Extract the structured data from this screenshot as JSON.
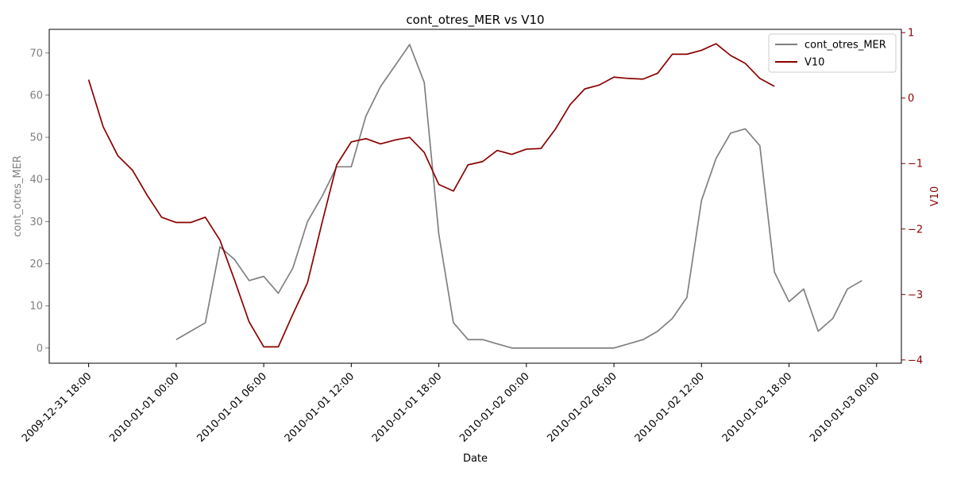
{
  "chart_data": {
    "type": "line",
    "title": "cont_otres_MER vs V10",
    "xlabel": "Date",
    "ylabel_left": "cont_otres_MER",
    "ylabel_right": "V10",
    "x_ticks": [
      "2009-12-31 18:00",
      "2010-01-01 00:00",
      "2010-01-01 06:00",
      "2010-01-01 12:00",
      "2010-01-01 18:00",
      "2010-01-02 00:00",
      "2010-01-02 06:00",
      "2010-01-02 12:00",
      "2010-01-02 18:00",
      "2010-01-03 00:00"
    ],
    "x_tick_hours": [
      0,
      6,
      12,
      18,
      24,
      30,
      36,
      42,
      48,
      54
    ],
    "xlim_hours": [
      -2.7,
      55.7
    ],
    "ylim_left": [
      -3.6,
      75.6
    ],
    "yticks_left": [
      0,
      10,
      20,
      30,
      40,
      50,
      60,
      70
    ],
    "ylim_right": [
      -4.05,
      1.05
    ],
    "yticks_right": [
      -4,
      -3,
      -2,
      -1,
      0,
      1
    ],
    "legend_position": "upper right",
    "grid": false,
    "series": [
      {
        "name": "cont_otres_MER",
        "axis": "left",
        "color": "#808080",
        "x_hours": [
          6,
          7,
          8,
          9,
          10,
          11,
          12,
          13,
          14,
          15,
          16,
          17,
          18,
          19,
          20,
          21,
          22,
          23,
          24,
          25,
          26,
          27,
          28,
          29,
          30,
          31,
          32,
          33,
          34,
          35,
          36,
          37,
          38,
          39,
          40,
          41,
          42,
          43,
          44,
          45,
          46,
          47,
          48,
          49,
          50,
          51,
          52,
          53
        ],
        "values": [
          2,
          4,
          6,
          24,
          21,
          16,
          17,
          13,
          19,
          30,
          36,
          43,
          43,
          55,
          62,
          67,
          72,
          63,
          27,
          6,
          2,
          2,
          1,
          0,
          0,
          0,
          0,
          0,
          0,
          0,
          0,
          1,
          2,
          4,
          7,
          12,
          35,
          45,
          51,
          52,
          48,
          18,
          11,
          14,
          4,
          7,
          14,
          16
        ]
      },
      {
        "name": "V10",
        "axis": "right",
        "color": "#8b0000",
        "x_hours": [
          0,
          1,
          2,
          3,
          4,
          5,
          6,
          7,
          8,
          9,
          10,
          11,
          12,
          13,
          14,
          15,
          16,
          17,
          18,
          19,
          20,
          21,
          22,
          23,
          24,
          25,
          26,
          27,
          28,
          29,
          30,
          31,
          32,
          33,
          34,
          35,
          36,
          37,
          38,
          39,
          40,
          41,
          42,
          43,
          44,
          45,
          46,
          47
        ],
        "values": [
          0.28,
          -0.44,
          -0.88,
          -1.1,
          -1.48,
          -1.82,
          -1.9,
          -1.9,
          -1.82,
          -2.17,
          -2.78,
          -3.42,
          -3.8,
          -3.8,
          -3.3,
          -2.82,
          -1.9,
          -1.02,
          -0.67,
          -0.62,
          -0.7,
          -0.64,
          -0.6,
          -0.83,
          -1.32,
          -1.42,
          -1.02,
          -0.97,
          -0.8,
          -0.86,
          -0.78,
          -0.77,
          -0.47,
          -0.1,
          0.14,
          0.2,
          0.32,
          0.3,
          0.29,
          0.38,
          0.67,
          0.67,
          0.73,
          0.83,
          0.65,
          0.53,
          0.3,
          0.18
        ]
      }
    ]
  }
}
